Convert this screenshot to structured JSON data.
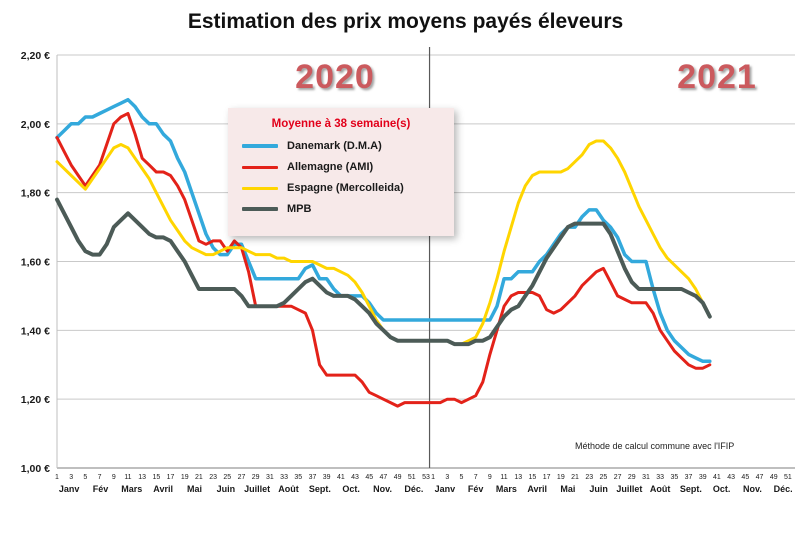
{
  "page": {
    "title": "Estimation des prix moyens payés éleveurs",
    "year_left": "2020",
    "year_right": "2021",
    "footnote": "Méthode de calcul commune avec l'IFIP"
  },
  "legend": {
    "title": "Moyenne à  38 semaine(s)",
    "items": [
      {
        "label": "Danemark (D.M.A)",
        "color": "#33a9dc"
      },
      {
        "label": "Allemagne (AMI)",
        "color": "#e32219"
      },
      {
        "label": "Espagne (Mercolleida)",
        "color": "#ffd500"
      },
      {
        "label": "MPB",
        "color": "#4c5b57"
      }
    ]
  },
  "chart_data": {
    "type": "line",
    "title": "Estimation des prix moyens payés éleveurs",
    "ylim": [
      1.0,
      2.2
    ],
    "ytick_step": 0.2,
    "ytick_labels": [
      "1,00 €",
      "1,20 €",
      "1,40 €",
      "1,60 €",
      "1,80 €",
      "2,00 €",
      "2,20 €"
    ],
    "grid": true,
    "x_axis": {
      "years": [
        {
          "label": "2020",
          "weeks": 53
        },
        {
          "label": "2021",
          "weeks": 52
        }
      ],
      "week_tick_interval": 2,
      "months": [
        "Janv",
        "Fév",
        "Mars",
        "Avril",
        "Mai",
        "Juin",
        "Juillet",
        "Août",
        "Sept.",
        "Oct.",
        "Nov.",
        "Déc."
      ]
    },
    "divider_after_week_index": 52,
    "series": [
      {
        "name": "Danemark (D.M.A)",
        "color": "#33a9dc",
        "width": 3.5,
        "values": [
          1.96,
          1.98,
          2.0,
          2.0,
          2.02,
          2.02,
          2.03,
          2.04,
          2.05,
          2.06,
          2.07,
          2.05,
          2.02,
          2.0,
          2.0,
          1.97,
          1.95,
          1.9,
          1.86,
          1.8,
          1.74,
          1.68,
          1.64,
          1.62,
          1.62,
          1.65,
          1.65,
          1.6,
          1.55,
          1.55,
          1.55,
          1.55,
          1.55,
          1.55,
          1.55,
          1.58,
          1.59,
          1.55,
          1.55,
          1.52,
          1.5,
          1.5,
          1.5,
          1.5,
          1.48,
          1.45,
          1.43,
          1.43,
          1.43,
          1.43,
          1.43,
          1.43,
          1.43,
          1.43,
          1.43,
          1.43,
          1.43,
          1.43,
          1.43,
          1.43,
          1.43,
          1.43,
          1.47,
          1.55,
          1.55,
          1.57,
          1.57,
          1.57,
          1.6,
          1.62,
          1.65,
          1.68,
          1.7,
          1.7,
          1.73,
          1.75,
          1.75,
          1.72,
          1.7,
          1.67,
          1.62,
          1.6,
          1.6,
          1.6,
          1.52,
          1.45,
          1.4,
          1.37,
          1.35,
          1.33,
          1.32,
          1.31,
          1.31,
          null,
          null,
          null,
          null,
          null,
          null,
          null,
          null,
          null,
          null,
          null,
          null
        ]
      },
      {
        "name": "Allemagne (AMI)",
        "color": "#e32219",
        "width": 3,
        "values": [
          1.96,
          1.92,
          1.88,
          1.85,
          1.82,
          1.85,
          1.88,
          1.94,
          2.0,
          2.02,
          2.03,
          1.97,
          1.9,
          1.88,
          1.86,
          1.86,
          1.85,
          1.82,
          1.78,
          1.72,
          1.66,
          1.65,
          1.66,
          1.66,
          1.63,
          1.66,
          1.64,
          1.57,
          1.47,
          1.47,
          1.47,
          1.47,
          1.47,
          1.47,
          1.46,
          1.45,
          1.4,
          1.3,
          1.27,
          1.27,
          1.27,
          1.27,
          1.27,
          1.25,
          1.22,
          1.21,
          1.2,
          1.19,
          1.18,
          1.19,
          1.19,
          1.19,
          1.19,
          1.19,
          1.19,
          1.2,
          1.2,
          1.19,
          1.2,
          1.21,
          1.25,
          1.33,
          1.4,
          1.47,
          1.5,
          1.51,
          1.51,
          1.51,
          1.5,
          1.46,
          1.45,
          1.46,
          1.48,
          1.5,
          1.53,
          1.55,
          1.57,
          1.58,
          1.54,
          1.5,
          1.49,
          1.48,
          1.48,
          1.48,
          1.45,
          1.4,
          1.37,
          1.34,
          1.32,
          1.3,
          1.29,
          1.29,
          1.3,
          null,
          null,
          null,
          null,
          null,
          null,
          null,
          null,
          null,
          null,
          null,
          null
        ]
      },
      {
        "name": "Espagne (Mercolleida)",
        "color": "#ffd500",
        "width": 3,
        "values": [
          1.89,
          1.87,
          1.85,
          1.83,
          1.81,
          1.84,
          1.87,
          1.9,
          1.93,
          1.94,
          1.93,
          1.9,
          1.87,
          1.84,
          1.8,
          1.76,
          1.72,
          1.69,
          1.66,
          1.64,
          1.63,
          1.62,
          1.62,
          1.63,
          1.64,
          1.64,
          1.64,
          1.63,
          1.62,
          1.62,
          1.62,
          1.61,
          1.61,
          1.6,
          1.6,
          1.6,
          1.6,
          1.59,
          1.58,
          1.58,
          1.57,
          1.56,
          1.54,
          1.51,
          1.47,
          1.43,
          1.4,
          1.38,
          1.37,
          1.37,
          1.37,
          1.37,
          1.37,
          1.37,
          1.37,
          1.37,
          1.36,
          1.36,
          1.37,
          1.38,
          1.42,
          1.48,
          1.55,
          1.63,
          1.7,
          1.77,
          1.82,
          1.85,
          1.86,
          1.86,
          1.86,
          1.86,
          1.87,
          1.89,
          1.91,
          1.94,
          1.95,
          1.95,
          1.93,
          1.9,
          1.86,
          1.81,
          1.76,
          1.72,
          1.68,
          1.64,
          1.61,
          1.59,
          1.57,
          1.55,
          1.52,
          1.48,
          1.44,
          null,
          null,
          null,
          null,
          null,
          null,
          null,
          null,
          null,
          null,
          null,
          null
        ]
      },
      {
        "name": "MPB",
        "color": "#4c5b57",
        "width": 4,
        "values": [
          1.78,
          1.74,
          1.7,
          1.66,
          1.63,
          1.62,
          1.62,
          1.65,
          1.7,
          1.72,
          1.74,
          1.72,
          1.7,
          1.68,
          1.67,
          1.67,
          1.66,
          1.63,
          1.6,
          1.56,
          1.52,
          1.52,
          1.52,
          1.52,
          1.52,
          1.52,
          1.5,
          1.47,
          1.47,
          1.47,
          1.47,
          1.47,
          1.48,
          1.5,
          1.52,
          1.54,
          1.55,
          1.53,
          1.51,
          1.5,
          1.5,
          1.5,
          1.49,
          1.47,
          1.45,
          1.42,
          1.4,
          1.38,
          1.37,
          1.37,
          1.37,
          1.37,
          1.37,
          1.37,
          1.37,
          1.37,
          1.36,
          1.36,
          1.36,
          1.37,
          1.37,
          1.38,
          1.41,
          1.44,
          1.46,
          1.47,
          1.5,
          1.53,
          1.57,
          1.61,
          1.64,
          1.67,
          1.7,
          1.71,
          1.71,
          1.71,
          1.71,
          1.71,
          1.68,
          1.63,
          1.58,
          1.54,
          1.52,
          1.52,
          1.52,
          1.52,
          1.52,
          1.52,
          1.52,
          1.51,
          1.5,
          1.48,
          1.44,
          null,
          null,
          null,
          null,
          null,
          null,
          null,
          null,
          null,
          null,
          null,
          null
        ]
      }
    ],
    "legend_position": "upper-left-inside",
    "annotations": [
      "2020",
      "2021",
      "Méthode de calcul commune avec l'IFIP"
    ]
  }
}
